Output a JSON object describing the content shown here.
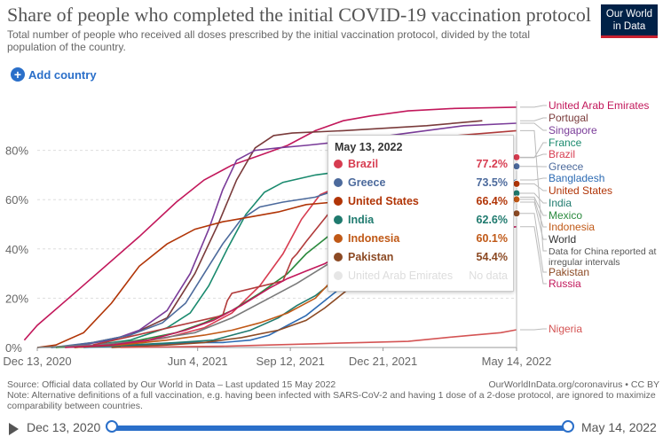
{
  "header": {
    "title": "Share of people who completed the initial COVID-19 vaccination protocol",
    "subtitle": "Total number of people who received all doses prescribed by the initial vaccination protocol, divided by the total population of the country.",
    "logo_line1": "Our World",
    "logo_line2": "in Data",
    "add_country": "Add country"
  },
  "footer": {
    "source": "Source: Official data collated by Our World in Data – Last updated 15 May 2022",
    "note": "Note: Alternative definitions of a full vaccination, e.g. having been infected with SARS-CoV-2 and having 1 dose of a 2-dose protocol, are ignored to maximize comparability between countries.",
    "url": "OurWorldInData.org/coronavirus • CC BY"
  },
  "timeline": {
    "start": "Dec 13, 2020",
    "end": "May 14, 2022",
    "start_fraction": 0,
    "end_fraction": 1
  },
  "tooltip": {
    "date": "May 13, 2022",
    "rows": [
      {
        "name": "Brazil",
        "value": "77.2%",
        "color": "#d73c50"
      },
      {
        "name": "Greece",
        "value": "73.5%",
        "color": "#4c6a9c"
      },
      {
        "name": "United States",
        "value": "66.4%",
        "color": "#b13507"
      },
      {
        "name": "India",
        "value": "62.6%",
        "color": "#1f7a6e"
      },
      {
        "name": "Indonesia",
        "value": "60.1%",
        "color": "#c05917"
      },
      {
        "name": "Pakistan",
        "value": "54.4%",
        "color": "#8c4a24"
      },
      {
        "name": "United Arab Emirates",
        "value": "No data",
        "color": "#e6e6e6",
        "faded": true
      }
    ]
  },
  "chart_data": {
    "type": "line",
    "title": "Share of people who completed the initial COVID-19 vaccination protocol",
    "x_ticks": [
      "Dec 13, 2020",
      "Jun 4, 2021",
      "Sep 12, 2021",
      "Dec 21, 2021",
      "May 14, 2022"
    ],
    "x_tick_days": [
      0,
      173,
      273,
      373,
      517
    ],
    "y_ticks": [
      "0%",
      "20%",
      "40%",
      "60%",
      "80%"
    ],
    "y_tick_values": [
      0,
      20,
      40,
      60,
      80
    ],
    "ylim": [
      0,
      100
    ],
    "xlim_days": [
      0,
      517
    ],
    "series": [
      {
        "name": "United Arab Emirates",
        "color": "#c2185b",
        "label": "United Arab Emirates",
        "points": [
          [
            -14,
            3
          ],
          [
            0,
            9
          ],
          [
            40,
            22
          ],
          [
            110,
            45
          ],
          [
            150,
            59
          ],
          [
            180,
            68
          ],
          [
            210,
            74
          ],
          [
            240,
            78
          ],
          [
            270,
            82
          ],
          [
            300,
            88
          ],
          [
            330,
            92
          ],
          [
            360,
            94
          ],
          [
            400,
            96
          ],
          [
            450,
            97
          ],
          [
            517,
            97.5
          ]
        ]
      },
      {
        "name": "Portugal",
        "color": "#7a3b3b",
        "label": "Portugal",
        "points": [
          [
            20,
            0
          ],
          [
            60,
            2
          ],
          [
            100,
            5
          ],
          [
            140,
            12
          ],
          [
            170,
            30
          ],
          [
            195,
            50
          ],
          [
            215,
            68
          ],
          [
            235,
            81
          ],
          [
            255,
            86
          ],
          [
            275,
            87
          ],
          [
            330,
            88
          ],
          [
            420,
            90
          ],
          [
            480,
            92
          ]
        ]
      },
      {
        "name": "Singapore",
        "color": "#7a3c99",
        "label": "Singapore",
        "points": [
          [
            30,
            0
          ],
          [
            80,
            3
          ],
          [
            110,
            7
          ],
          [
            140,
            15
          ],
          [
            165,
            30
          ],
          [
            185,
            48
          ],
          [
            200,
            64
          ],
          [
            215,
            76
          ],
          [
            235,
            80
          ],
          [
            260,
            81
          ],
          [
            290,
            82
          ],
          [
            340,
            84
          ],
          [
            400,
            87
          ],
          [
            460,
            90
          ],
          [
            517,
            91
          ]
        ]
      },
      {
        "name": "France",
        "color": "#1a8a6e",
        "label": "France",
        "points": [
          [
            15,
            0
          ],
          [
            60,
            1
          ],
          [
            100,
            3
          ],
          [
            140,
            8
          ],
          [
            165,
            14
          ],
          [
            185,
            25
          ],
          [
            205,
            40
          ],
          [
            225,
            54
          ],
          [
            245,
            63
          ],
          [
            265,
            67
          ],
          [
            300,
            70
          ],
          [
            360,
            73
          ],
          [
            420,
            75
          ],
          [
            517,
            77
          ]
        ]
      },
      {
        "name": "Brazil",
        "color": "#d73c50",
        "label": "Brazil",
        "points": [
          [
            40,
            0
          ],
          [
            90,
            1
          ],
          [
            140,
            4
          ],
          [
            180,
            8
          ],
          [
            210,
            14
          ],
          [
            240,
            25
          ],
          [
            265,
            38
          ],
          [
            285,
            52
          ],
          [
            305,
            62
          ],
          [
            330,
            66
          ],
          [
            370,
            70
          ],
          [
            420,
            74
          ],
          [
            470,
            76
          ],
          [
            517,
            77.2
          ]
        ]
      },
      {
        "name": "Greece",
        "color": "#4c6a9c",
        "label": "Greece",
        "points": [
          [
            15,
            0
          ],
          [
            60,
            2
          ],
          [
            100,
            5
          ],
          [
            135,
            10
          ],
          [
            160,
            18
          ],
          [
            180,
            30
          ],
          [
            200,
            42
          ],
          [
            220,
            52
          ],
          [
            240,
            57
          ],
          [
            265,
            59
          ],
          [
            300,
            61
          ],
          [
            340,
            66
          ],
          [
            380,
            70
          ],
          [
            420,
            72
          ],
          [
            460,
            73
          ],
          [
            517,
            73.5
          ]
        ]
      },
      {
        "name": "Bangladesh",
        "color": "#2d6bb3",
        "label": "Bangladesh",
        "points": [
          [
            50,
            0
          ],
          [
            120,
            1
          ],
          [
            170,
            2
          ],
          [
            200,
            2
          ],
          [
            230,
            3
          ],
          [
            250,
            5
          ],
          [
            270,
            9
          ],
          [
            290,
            13
          ],
          [
            310,
            19
          ],
          [
            330,
            25
          ],
          [
            350,
            33
          ],
          [
            370,
            40
          ],
          [
            390,
            48
          ],
          [
            420,
            55
          ],
          [
            460,
            62
          ],
          [
            517,
            68
          ]
        ]
      },
      {
        "name": "United States",
        "color": "#b13507",
        "label": "United States",
        "points": [
          [
            0,
            0
          ],
          [
            20,
            1
          ],
          [
            50,
            6
          ],
          [
            80,
            18
          ],
          [
            110,
            33
          ],
          [
            140,
            42
          ],
          [
            170,
            48
          ],
          [
            200,
            51
          ],
          [
            230,
            53
          ],
          [
            260,
            55
          ],
          [
            290,
            58
          ],
          [
            320,
            59
          ],
          [
            360,
            60
          ],
          [
            400,
            62
          ],
          [
            450,
            64
          ],
          [
            517,
            66.4
          ]
        ]
      },
      {
        "name": "India",
        "color": "#1f7a6e",
        "label": "India",
        "points": [
          [
            40,
            0
          ],
          [
            100,
            1
          ],
          [
            150,
            2
          ],
          [
            190,
            3
          ],
          [
            230,
            7
          ],
          [
            260,
            12
          ],
          [
            280,
            17
          ],
          [
            300,
            21
          ],
          [
            320,
            27
          ],
          [
            340,
            34
          ],
          [
            360,
            41
          ],
          [
            380,
            48
          ],
          [
            400,
            52
          ],
          [
            430,
            57
          ],
          [
            470,
            60
          ],
          [
            517,
            62.6
          ]
        ]
      },
      {
        "name": "Mexico",
        "color": "#2b8a3e",
        "label": "Mexico",
        "points": [
          [
            20,
            0
          ],
          [
            70,
            1
          ],
          [
            110,
            3
          ],
          [
            150,
            6
          ],
          [
            180,
            10
          ],
          [
            210,
            15
          ],
          [
            240,
            22
          ],
          [
            270,
            30
          ],
          [
            290,
            38
          ],
          [
            310,
            44
          ],
          [
            330,
            50
          ],
          [
            360,
            54
          ],
          [
            400,
            56
          ],
          [
            450,
            59
          ],
          [
            517,
            61
          ]
        ]
      },
      {
        "name": "Indonesia",
        "color": "#c05917",
        "label": "Indonesia",
        "points": [
          [
            40,
            0
          ],
          [
            90,
            1
          ],
          [
            140,
            3
          ],
          [
            180,
            5
          ],
          [
            210,
            7
          ],
          [
            240,
            10
          ],
          [
            270,
            14
          ],
          [
            300,
            20
          ],
          [
            320,
            28
          ],
          [
            340,
            34
          ],
          [
            360,
            40
          ],
          [
            380,
            46
          ],
          [
            400,
            52
          ],
          [
            440,
            56
          ],
          [
            480,
            58
          ],
          [
            517,
            60.1
          ]
        ]
      },
      {
        "name": "World",
        "color": "#7a7a7a",
        "label": "World",
        "points": [
          [
            0,
            0
          ],
          [
            60,
            1
          ],
          [
            120,
            3
          ],
          [
            170,
            6
          ],
          [
            210,
            12
          ],
          [
            250,
            20
          ],
          [
            280,
            26
          ],
          [
            310,
            33
          ],
          [
            340,
            40
          ],
          [
            370,
            46
          ],
          [
            400,
            50
          ],
          [
            440,
            54
          ],
          [
            480,
            57
          ],
          [
            517,
            59
          ]
        ]
      },
      {
        "name": "China",
        "color": "#b13b3b",
        "label": "Data for China reported at irregular intervals",
        "points": [
          [
            60,
            1
          ],
          [
            200,
            13
          ],
          [
            205,
            19
          ],
          [
            210,
            22
          ],
          [
            265,
            27
          ],
          [
            275,
            36
          ],
          [
            280,
            38
          ],
          [
            290,
            43
          ],
          [
            320,
            57
          ],
          [
            355,
            70
          ],
          [
            390,
            80
          ],
          [
            420,
            85
          ],
          [
            517,
            88
          ]
        ]
      },
      {
        "name": "Pakistan",
        "color": "#8c4a24",
        "label": "Pakistan",
        "points": [
          [
            80,
            0
          ],
          [
            140,
            1
          ],
          [
            180,
            2
          ],
          [
            220,
            4
          ],
          [
            260,
            7
          ],
          [
            290,
            11
          ],
          [
            310,
            16
          ],
          [
            330,
            22
          ],
          [
            350,
            28
          ],
          [
            370,
            34
          ],
          [
            390,
            40
          ],
          [
            410,
            45
          ],
          [
            440,
            49
          ],
          [
            480,
            52
          ],
          [
            517,
            54.4
          ]
        ]
      },
      {
        "name": "Russia",
        "color": "#c2185b",
        "label": "Russia",
        "points": [
          [
            30,
            0
          ],
          [
            80,
            1
          ],
          [
            120,
            3
          ],
          [
            160,
            7
          ],
          [
            190,
            11
          ],
          [
            220,
            17
          ],
          [
            250,
            24
          ],
          [
            270,
            28
          ],
          [
            290,
            31
          ],
          [
            310,
            34
          ],
          [
            330,
            38
          ],
          [
            360,
            42
          ],
          [
            400,
            45
          ],
          [
            450,
            47
          ],
          [
            517,
            49
          ]
        ]
      },
      {
        "name": "Nigeria",
        "color": "#d45454",
        "label": "Nigeria",
        "points": [
          [
            90,
            0
          ],
          [
            150,
            0.3
          ],
          [
            200,
            0.5
          ],
          [
            250,
            1
          ],
          [
            300,
            1.5
          ],
          [
            350,
            2
          ],
          [
            400,
            2.5
          ],
          [
            440,
            4
          ],
          [
            470,
            5
          ],
          [
            500,
            6
          ],
          [
            517,
            7.2
          ]
        ]
      }
    ],
    "legend_order": [
      "United Arab Emirates",
      "Portugal",
      "Singapore",
      "France",
      "Brazil",
      "Greece",
      "Bangladesh",
      "United States",
      "India",
      "Mexico",
      "Indonesia",
      "World",
      "China",
      "Pakistan",
      "Russia",
      "Nigeria"
    ],
    "hover_markers": [
      "Brazil",
      "Greece",
      "United States",
      "India",
      "Indonesia",
      "Pakistan"
    ]
  }
}
